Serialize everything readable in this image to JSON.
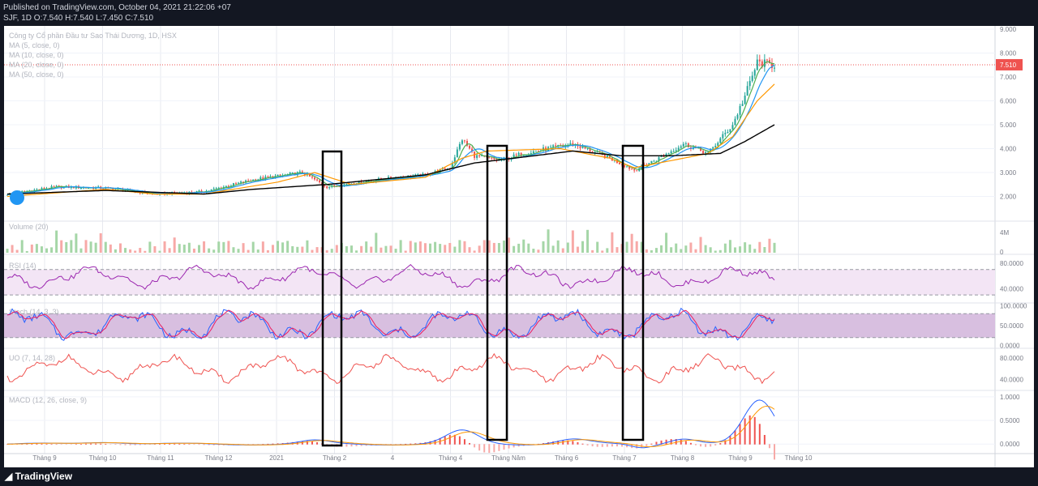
{
  "header": {
    "published": "Published on TradingView.com, October 04, 2021 21:22:06 +07",
    "symbol_line": "SJF, 1D O:7.540 H:7.540 L:7.450 C:7.510"
  },
  "footer": {
    "brand": "TradingView",
    "logo_icon": "tradingview-logo-icon"
  },
  "chart_data": {
    "type": "line",
    "title": "Công ty Cổ phần Đầu tư Sao Thái Dương, 1D, HSX",
    "legend": [
      "MA (5, close, 0)",
      "MA (10, close, 0)",
      "MA (20, close, 0)",
      "MA (50, close, 0)"
    ],
    "x_ticks": [
      "Tháng 9",
      "Tháng 10",
      "Tháng 11",
      "Tháng 12",
      "2021",
      "Tháng 2",
      "4",
      "Tháng 4",
      "Tháng Năm",
      "Tháng 6",
      "Tháng 7",
      "Tháng 8",
      "Tháng 9",
      "Tháng 10"
    ],
    "last_price": "7.510",
    "colors": {
      "up": "#26a69a",
      "down": "#ef5350",
      "ma5": "#4caf50",
      "ma10": "#2196f3",
      "ma20": "#ff9800",
      "ma50": "#000000",
      "rsi": "#9c27b0",
      "stoch_k": "#2962ff",
      "stoch_d": "#e91e63",
      "macd": "#2962ff",
      "signal": "#ff9800"
    },
    "price_pane": {
      "y_ticks": [
        "9.000",
        "8.000",
        "7.000",
        "6.000",
        "5.000",
        "4.000",
        "3.000",
        "2.000"
      ],
      "ylim": [
        1.0,
        9.0
      ],
      "key_points": [
        [
          0,
          2.1
        ],
        [
          20,
          2.4
        ],
        [
          40,
          2.35
        ],
        [
          60,
          2.1
        ],
        [
          80,
          2.2
        ],
        [
          100,
          2.7
        ],
        [
          120,
          3.0
        ],
        [
          130,
          2.4
        ],
        [
          150,
          2.7
        ],
        [
          170,
          2.9
        ],
        [
          180,
          3.2
        ],
        [
          185,
          4.4
        ],
        [
          190,
          3.7
        ],
        [
          200,
          3.5
        ],
        [
          210,
          3.8
        ],
        [
          230,
          4.2
        ],
        [
          245,
          3.6
        ],
        [
          255,
          3.1
        ],
        [
          265,
          3.6
        ],
        [
          275,
          4.2
        ],
        [
          285,
          3.8
        ],
        [
          295,
          5.0
        ],
        [
          300,
          6.2
        ],
        [
          305,
          7.6
        ],
        [
          312,
          7.5
        ]
      ],
      "ma50_points": [
        [
          0,
          2.1
        ],
        [
          40,
          2.25
        ],
        [
          80,
          2.1
        ],
        [
          100,
          2.3
        ],
        [
          130,
          2.5
        ],
        [
          170,
          2.9
        ],
        [
          190,
          3.4
        ],
        [
          230,
          3.9
        ],
        [
          250,
          3.7
        ],
        [
          270,
          3.7
        ],
        [
          290,
          3.8
        ],
        [
          300,
          4.3
        ],
        [
          312,
          5.0
        ]
      ],
      "ma20_points": [
        [
          0,
          2.0
        ],
        [
          40,
          2.3
        ],
        [
          60,
          2.1
        ],
        [
          80,
          2.1
        ],
        [
          110,
          2.6
        ],
        [
          125,
          3.0
        ],
        [
          140,
          2.5
        ],
        [
          170,
          2.8
        ],
        [
          185,
          3.6
        ],
        [
          195,
          3.9
        ],
        [
          225,
          4.0
        ],
        [
          245,
          3.6
        ],
        [
          255,
          3.2
        ],
        [
          270,
          3.5
        ],
        [
          285,
          3.8
        ],
        [
          295,
          4.5
        ],
        [
          305,
          6.0
        ],
        [
          312,
          6.7
        ]
      ]
    },
    "volume_pane": {
      "label": "Volume (20)",
      "y_ticks": [
        "4M",
        "0"
      ]
    },
    "rsi_pane": {
      "label": "RSI (14)",
      "y_ticks": [
        "80.0000",
        "40.0000"
      ],
      "band": [
        30,
        70
      ],
      "ylim": [
        20,
        90
      ]
    },
    "stoch_pane": {
      "label": "Stoch (14, 3, 3)",
      "y_ticks": [
        "100.0000",
        "50.0000",
        "0.0000"
      ],
      "band": [
        20,
        80
      ],
      "ylim": [
        -5,
        105
      ]
    },
    "uo_pane": {
      "label": "UO (7, 14, 28)",
      "y_ticks": [
        "80.0000",
        "40.0000"
      ],
      "ylim": [
        20,
        95
      ]
    },
    "macd_pane": {
      "label": "MACD (12, 26, close, 9)",
      "y_ticks": [
        "1.0000",
        "0.5000",
        "0.0000"
      ],
      "ylim": [
        -0.15,
        1.1
      ]
    }
  }
}
